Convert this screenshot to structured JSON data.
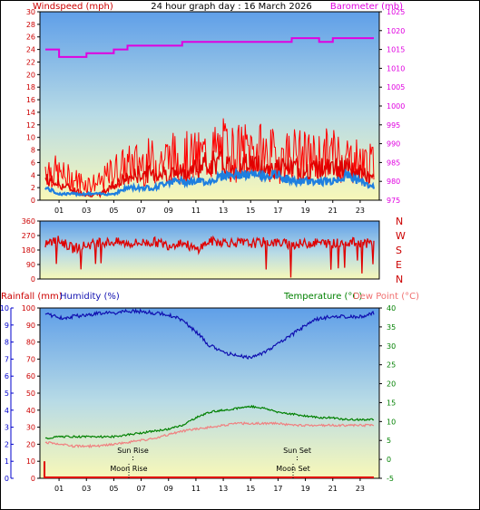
{
  "title": "24 hour graph day : 16 March 2026",
  "colors": {
    "wind": "#e00000",
    "gust": "#ff0000",
    "wind_avg": "#1e7fe0",
    "baro": "#e000e0",
    "winddir": "#e00000",
    "humidity": "#1010b0",
    "temperature": "#008000",
    "dewpoint": "#f08080",
    "rain": "#e00000",
    "axis_blue": "#0000cc",
    "axis_green": "#008000",
    "axis_red": "#cc0000"
  },
  "hour_labels": [
    "01",
    "03",
    "05",
    "07",
    "09",
    "11",
    "13",
    "15",
    "17",
    "19",
    "21",
    "23"
  ],
  "chart_data": [
    {
      "type": "line",
      "name": "wind-baro",
      "title": "24 hour graph day : 16 March 2026",
      "ylabel_left": "Windspeed (mph)",
      "ylabel_right": "Barometer (mb)",
      "ylim_left": [
        0,
        30
      ],
      "ylim_right": [
        975,
        1025
      ],
      "yticks_left": [
        "0",
        "2",
        "4",
        "6",
        "8",
        "10",
        "12",
        "14",
        "16",
        "18",
        "20",
        "22",
        "24",
        "26",
        "28",
        "30"
      ],
      "yticks_right": [
        "975",
        "980",
        "985",
        "990",
        "995",
        "1000",
        "1005",
        "1010",
        "1015",
        "1020",
        "1025"
      ],
      "x_hours": [
        0,
        1,
        2,
        3,
        4,
        5,
        6,
        7,
        8,
        9,
        10,
        11,
        12,
        13,
        14,
        15,
        16,
        17,
        18,
        19,
        20,
        21,
        22,
        23,
        24
      ],
      "gust_max": [
        8,
        6,
        5,
        4,
        4,
        7,
        8,
        9,
        9,
        10,
        10,
        10,
        11,
        12,
        11,
        12,
        11,
        10,
        11,
        10,
        10,
        11,
        10,
        9,
        8
      ],
      "wind_speed": [
        4,
        3,
        2,
        1,
        1,
        3,
        4,
        5,
        5,
        5,
        5,
        6,
        7,
        7,
        6,
        7,
        6,
        6,
        6,
        5,
        6,
        6,
        6,
        5,
        4
      ],
      "wind_avg": [
        2,
        1,
        1,
        1,
        1,
        1,
        2,
        2,
        2,
        3,
        3,
        3,
        3,
        4,
        4,
        4,
        4,
        4,
        3,
        3,
        3,
        3,
        4,
        3,
        2
      ],
      "barometer": [
        1015,
        1013,
        1013,
        1014,
        1014,
        1015,
        1016,
        1016,
        1016,
        1016,
        1017,
        1017,
        1017,
        1017,
        1017,
        1017,
        1017,
        1017,
        1018,
        1018,
        1017,
        1018,
        1018,
        1018,
        1018
      ]
    },
    {
      "type": "line",
      "name": "wind-direction",
      "ylim": [
        0,
        360
      ],
      "yticks_left": [
        "0",
        "90",
        "180",
        "270",
        "360"
      ],
      "yticks_right": [
        "N",
        "E",
        "S",
        "W",
        "N"
      ],
      "x_hours": [
        0,
        1,
        2,
        3,
        4,
        5,
        6,
        7,
        8,
        9,
        10,
        11,
        12,
        13,
        14,
        15,
        16,
        17,
        18,
        19,
        20,
        21,
        22,
        23,
        24
      ],
      "direction": [
        220,
        240,
        190,
        210,
        225,
        230,
        220,
        225,
        230,
        210,
        230,
        180,
        235,
        230,
        225,
        220,
        230,
        225,
        215,
        220,
        225,
        220,
        230,
        225,
        220
      ]
    },
    {
      "type": "line",
      "name": "temp-hum-rain",
      "ylabel_left_1": "Rainfall (mm)",
      "ylabel_left_2": "Humidity (%)",
      "ylabel_right_1": "Temperature (°C)",
      "ylabel_right_2": "Dew Point (°C)",
      "ylim_left": [
        0,
        100
      ],
      "ylim_rain": [
        0,
        10
      ],
      "ylim_right": [
        -5,
        40
      ],
      "yticks_left_humidity": [
        "0",
        "10",
        "20",
        "30",
        "40",
        "50",
        "60",
        "70",
        "80",
        "90",
        "100"
      ],
      "yticks_left_rain": [
        "0",
        "1",
        "2",
        "3",
        "4",
        "5",
        "6",
        "7",
        "8",
        "9",
        "10"
      ],
      "yticks_right": [
        "-5",
        "0",
        "5",
        "10",
        "15",
        "20",
        "25",
        "30",
        "35",
        "40"
      ],
      "x_hours": [
        0,
        1,
        2,
        3,
        4,
        5,
        6,
        7,
        8,
        9,
        10,
        11,
        12,
        13,
        14,
        15,
        16,
        17,
        18,
        19,
        20,
        21,
        22,
        23,
        24
      ],
      "humidity": [
        97,
        94,
        95,
        96,
        97,
        97,
        98,
        98,
        97,
        96,
        93,
        86,
        78,
        74,
        72,
        71,
        74,
        79,
        84,
        90,
        94,
        95,
        95,
        95,
        97
      ],
      "temperature": [
        5.5,
        6.0,
        6.0,
        6.0,
        6.0,
        6.0,
        6.5,
        7.0,
        7.5,
        8.0,
        9.0,
        11.0,
        12.5,
        13.0,
        13.5,
        14.0,
        13.5,
        12.5,
        12.0,
        11.5,
        11.0,
        11.0,
        10.5,
        10.5,
        10.5
      ],
      "dewpoint": [
        4.5,
        4.0,
        3.5,
        3.5,
        3.5,
        4.0,
        4.5,
        5.0,
        5.5,
        6.5,
        7.5,
        8.0,
        8.5,
        9.0,
        9.5,
        9.5,
        9.5,
        9.5,
        9.0,
        9.0,
        9.0,
        9.0,
        9.0,
        9.0,
        9.0
      ],
      "rain_hour": [
        0.0
      ],
      "rain_total": [
        1.0
      ],
      "annotations": [
        {
          "text": "Sun Rise",
          "hour": 6.4
        },
        {
          "text": "Sun Set",
          "hour": 18.4
        },
        {
          "text": "Moon Rise",
          "hour": 6.1
        },
        {
          "text": "Moon Set",
          "hour": 18.1
        }
      ]
    }
  ]
}
